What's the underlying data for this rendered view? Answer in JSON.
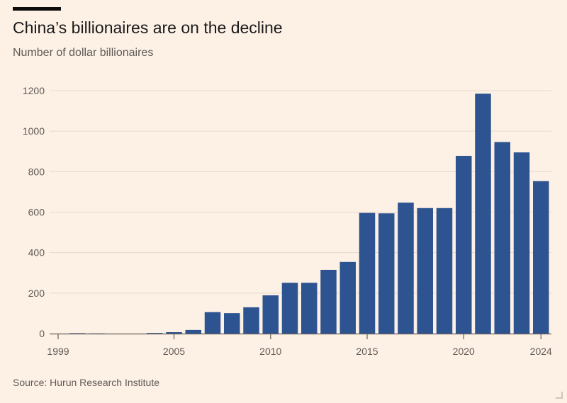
{
  "header": {
    "title": "China’s billionaires are on the decline",
    "subtitle": "Number of dollar billionaires"
  },
  "footer": {
    "source": "Source: Hurun Research Institute"
  },
  "chart_data": {
    "type": "bar",
    "title": "China’s billionaires are on the decline",
    "subtitle": "Number of dollar billionaires",
    "xlabel": "",
    "ylabel": "",
    "categories": [
      1999,
      2000,
      2001,
      2002,
      2003,
      2004,
      2005,
      2006,
      2007,
      2008,
      2009,
      2010,
      2011,
      2012,
      2013,
      2014,
      2015,
      2016,
      2017,
      2018,
      2019,
      2020,
      2021,
      2022,
      2023,
      2024
    ],
    "values": [
      0,
      2,
      1,
      0,
      0,
      3,
      7,
      18,
      106,
      101,
      130,
      189,
      251,
      251,
      315,
      354,
      596,
      594,
      647,
      620,
      620,
      878,
      1185,
      946,
      895,
      753
    ],
    "x_tick_labels": [
      "1999",
      "2005",
      "2010",
      "2015",
      "2020",
      "2024"
    ],
    "y_ticks": [
      0,
      200,
      400,
      600,
      800,
      1000,
      1200
    ],
    "ylim": [
      0,
      1200
    ],
    "grid": true,
    "legend": "none",
    "colors": {
      "bar": "#2e5391",
      "background": "#fdf1e6"
    }
  }
}
